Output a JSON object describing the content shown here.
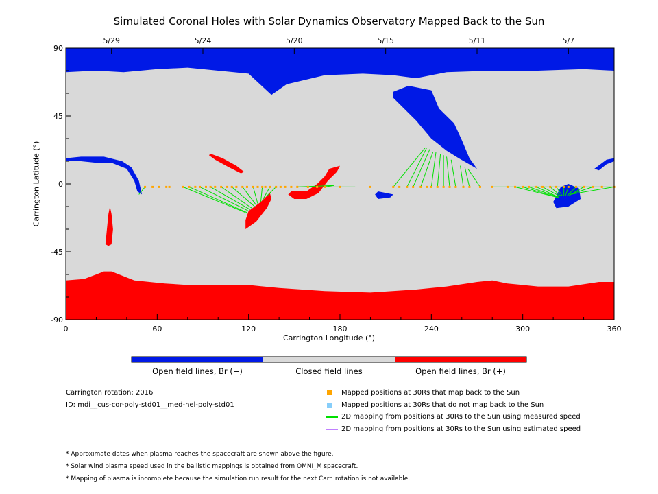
{
  "chart_data": {
    "type": "map",
    "title": "Simulated Coronal Holes with Solar Dynamics Observatory Mapped Back to the Sun",
    "xlabel": "Carrington Longitude (°)",
    "ylabel": "Carrington Latitude (°)",
    "xlim": [
      0,
      360
    ],
    "ylim": [
      -90,
      90
    ],
    "x_ticks": [
      "0",
      "60",
      "120",
      "180",
      "240",
      "300",
      "360"
    ],
    "y_ticks": [
      "90",
      "45",
      "0",
      "-45",
      "-90"
    ],
    "top_date_ticks": [
      {
        "label": "5/29",
        "lon": 30
      },
      {
        "label": "5/24",
        "lon": 90
      },
      {
        "label": "5/20",
        "lon": 150
      },
      {
        "label": "5/15",
        "lon": 210
      },
      {
        "label": "5/11",
        "lon": 270
      },
      {
        "label": "5/7",
        "lon": 330
      }
    ],
    "colors": {
      "open_negative": "#0019e6",
      "closed": "#d9d9d9",
      "open_positive": "#ff0000",
      "mapped_point": "#ffa500",
      "unmapped_point": "#87cefa",
      "measured_line": "#00e000",
      "estimated_line": "#c080ff"
    },
    "regions": {
      "north_polar_hole_boundary": [
        [
          0,
          74
        ],
        [
          20,
          75
        ],
        [
          38,
          74
        ],
        [
          60,
          76
        ],
        [
          80,
          77
        ],
        [
          100,
          75
        ],
        [
          120,
          73
        ],
        [
          135,
          59
        ],
        [
          145,
          66
        ],
        [
          170,
          72
        ],
        [
          195,
          73
        ],
        [
          215,
          72
        ],
        [
          230,
          70
        ],
        [
          250,
          74
        ],
        [
          280,
          75
        ],
        [
          310,
          75
        ],
        [
          340,
          76
        ],
        [
          360,
          75
        ]
      ],
      "south_polar_hole_boundary": [
        [
          0,
          -64
        ],
        [
          12,
          -63
        ],
        [
          20,
          -60
        ],
        [
          25,
          -58
        ],
        [
          30,
          -58
        ],
        [
          35,
          -60
        ],
        [
          45,
          -64
        ],
        [
          65,
          -66
        ],
        [
          80,
          -67
        ],
        [
          100,
          -67
        ],
        [
          120,
          -67
        ],
        [
          140,
          -69
        ],
        [
          170,
          -71
        ],
        [
          200,
          -72
        ],
        [
          230,
          -70
        ],
        [
          250,
          -68
        ],
        [
          270,
          -65
        ],
        [
          280,
          -64
        ],
        [
          290,
          -66
        ],
        [
          310,
          -68
        ],
        [
          330,
          -68
        ],
        [
          350,
          -65
        ],
        [
          360,
          -65
        ]
      ],
      "negative_extension": [
        [
          215,
          61
        ],
        [
          225,
          65
        ],
        [
          240,
          62
        ],
        [
          245,
          50
        ],
        [
          255,
          40
        ],
        [
          260,
          29
        ],
        [
          265,
          17
        ],
        [
          270,
          10
        ],
        [
          258,
          17
        ],
        [
          250,
          22
        ],
        [
          240,
          30
        ],
        [
          230,
          42
        ],
        [
          222,
          50
        ],
        [
          215,
          57
        ]
      ],
      "negative_lowlat_left": [
        [
          0,
          17
        ],
        [
          10,
          18
        ],
        [
          25,
          18
        ],
        [
          37,
          15
        ],
        [
          43,
          11
        ],
        [
          48,
          2
        ],
        [
          50,
          -7
        ],
        [
          47,
          -5
        ],
        [
          45,
          2
        ],
        [
          40,
          10
        ],
        [
          30,
          14
        ],
        [
          20,
          14
        ],
        [
          10,
          15
        ],
        [
          0,
          15
        ]
      ],
      "negative_small_a": [
        [
          205,
          -5
        ],
        [
          215,
          -7
        ],
        [
          213,
          -9
        ],
        [
          205,
          -10
        ],
        [
          203,
          -7
        ]
      ],
      "negative_small_b": [
        [
          320,
          -12
        ],
        [
          325,
          -2
        ],
        [
          330,
          0
        ],
        [
          337,
          -3
        ],
        [
          338,
          -10
        ],
        [
          330,
          -15
        ],
        [
          322,
          -16
        ]
      ],
      "negative_small_c": [
        [
          347,
          10
        ],
        [
          355,
          16
        ],
        [
          360,
          17
        ],
        [
          360,
          15
        ],
        [
          355,
          13
        ],
        [
          350,
          9
        ]
      ],
      "positive_center": [
        [
          118,
          -30
        ],
        [
          125,
          -25
        ],
        [
          132,
          -16
        ],
        [
          135,
          -10
        ],
        [
          134,
          -6
        ],
        [
          128,
          -12
        ],
        [
          120,
          -18
        ],
        [
          118,
          -24
        ]
      ],
      "positive_right": [
        [
          148,
          -5
        ],
        [
          158,
          -5
        ],
        [
          165,
          0
        ],
        [
          170,
          5
        ],
        [
          173,
          10
        ],
        [
          180,
          12
        ],
        [
          178,
          8
        ],
        [
          172,
          2
        ],
        [
          166,
          -6
        ],
        [
          158,
          -10
        ],
        [
          150,
          -10
        ],
        [
          146,
          -7
        ]
      ],
      "positive_far_left": [
        [
          26,
          -40
        ],
        [
          27,
          -30
        ],
        [
          28,
          -20
        ],
        [
          29,
          -15
        ],
        [
          30,
          -20
        ],
        [
          31,
          -30
        ],
        [
          30,
          -40
        ],
        [
          28,
          -41
        ]
      ],
      "positive_small_upper": [
        [
          95,
          20
        ],
        [
          103,
          17
        ],
        [
          112,
          12
        ],
        [
          117,
          8
        ],
        [
          115,
          7
        ],
        [
          107,
          11
        ],
        [
          98,
          16
        ],
        [
          94,
          19
        ]
      ]
    },
    "mapped_points": {
      "latitude": -2,
      "longitudes": [
        52,
        57,
        61,
        66,
        68,
        77,
        81,
        85,
        88,
        92,
        95,
        98,
        102,
        106,
        109,
        112,
        116,
        119,
        123,
        126,
        129,
        131,
        134,
        138,
        141,
        144,
        148,
        152,
        159,
        165,
        170,
        180,
        200,
        215,
        219,
        224,
        228,
        233,
        237,
        240,
        244,
        248,
        252,
        256,
        261,
        265,
        272,
        280,
        290,
        295,
        300,
        304,
        309,
        313,
        318,
        322,
        327,
        330,
        335,
        340,
        346,
        352,
        360
      ]
    },
    "measured_lines": [
      {
        "points": [
          [
            77,
            -2
          ],
          [
            118,
            -19
          ]
        ]
      },
      {
        "points": [
          [
            81,
            -2
          ],
          [
            119,
            -19
          ]
        ]
      },
      {
        "points": [
          [
            88,
            -2
          ],
          [
            120,
            -18
          ]
        ]
      },
      {
        "points": [
          [
            95,
            -2
          ],
          [
            121,
            -17
          ]
        ]
      },
      {
        "points": [
          [
            102,
            -2
          ],
          [
            122,
            -16
          ]
        ]
      },
      {
        "points": [
          [
            109,
            -2
          ],
          [
            124,
            -15
          ]
        ]
      },
      {
        "points": [
          [
            116,
            -2
          ],
          [
            125,
            -14
          ]
        ]
      },
      {
        "points": [
          [
            123,
            -2
          ],
          [
            126,
            -13
          ]
        ]
      },
      {
        "points": [
          [
            129,
            -2
          ],
          [
            128,
            -12
          ]
        ]
      },
      {
        "points": [
          [
            134,
            -2
          ],
          [
            129,
            -11
          ]
        ]
      },
      {
        "points": [
          [
            138,
            -2
          ],
          [
            132,
            -8
          ]
        ]
      },
      {
        "points": [
          [
            152,
            -2
          ],
          [
            176,
            -1
          ]
        ]
      },
      {
        "points": [
          [
            170,
            -2
          ],
          [
            176,
            -1
          ]
        ]
      },
      {
        "points": [
          [
            215,
            -2
          ],
          [
            236,
            24
          ]
        ]
      },
      {
        "points": [
          [
            224,
            -2
          ],
          [
            237,
            24
          ]
        ]
      },
      {
        "points": [
          [
            228,
            -2
          ],
          [
            239,
            23
          ]
        ]
      },
      {
        "points": [
          [
            233,
            -2
          ],
          [
            241,
            21
          ]
        ]
      },
      {
        "points": [
          [
            240,
            -2
          ],
          [
            243,
            21
          ]
        ]
      },
      {
        "points": [
          [
            244,
            -2
          ],
          [
            246,
            20
          ]
        ]
      },
      {
        "points": [
          [
            248,
            -2
          ],
          [
            248,
            19
          ]
        ]
      },
      {
        "points": [
          [
            252,
            -2
          ],
          [
            250,
            18
          ]
        ]
      },
      {
        "points": [
          [
            256,
            -2
          ],
          [
            253,
            16
          ]
        ]
      },
      {
        "points": [
          [
            261,
            -2
          ],
          [
            259,
            12
          ]
        ]
      },
      {
        "points": [
          [
            265,
            -2
          ],
          [
            262,
            11
          ]
        ]
      },
      {
        "points": [
          [
            272,
            -2
          ],
          [
            264,
            10
          ]
        ]
      },
      {
        "points": [
          [
            295,
            -2
          ],
          [
            323,
            -9
          ]
        ]
      },
      {
        "points": [
          [
            300,
            -2
          ],
          [
            323,
            -9
          ]
        ]
      },
      {
        "points": [
          [
            304,
            -2
          ],
          [
            324,
            -9
          ]
        ]
      },
      {
        "points": [
          [
            309,
            -2
          ],
          [
            324,
            -9
          ]
        ]
      },
      {
        "points": [
          [
            313,
            -2
          ],
          [
            324,
            -8
          ]
        ]
      },
      {
        "points": [
          [
            318,
            -2
          ],
          [
            325,
            -8
          ]
        ]
      },
      {
        "points": [
          [
            322,
            -2
          ],
          [
            326,
            -8
          ]
        ]
      },
      {
        "points": [
          [
            327,
            -2
          ],
          [
            327,
            -8
          ]
        ]
      },
      {
        "points": [
          [
            330,
            -2
          ],
          [
            328,
            -8
          ]
        ]
      },
      {
        "points": [
          [
            335,
            -2
          ],
          [
            329,
            -8
          ]
        ]
      },
      {
        "points": [
          [
            340,
            -2
          ],
          [
            330,
            -8
          ]
        ]
      },
      {
        "points": [
          [
            346,
            -2
          ],
          [
            331,
            -7
          ]
        ]
      },
      {
        "points": [
          [
            360,
            -2
          ],
          [
            331,
            -7
          ]
        ]
      }
    ],
    "left_hook_line": [
      [
        48,
        -7
      ],
      [
        52,
        -2
      ]
    ],
    "colorbar_labels": [
      "Open field lines, Br (−)",
      "Closed field lines",
      "Open field lines, Br (+)"
    ]
  },
  "info": {
    "carrington_rotation": "Carrington rotation: 2016",
    "id": "ID: mdi__cus-cor-poly-std01__med-hel-poly-std01"
  },
  "legend": [
    {
      "symbol": "square",
      "color": "#ffa500",
      "label": "Mapped positions at 30Rs that map back to the Sun"
    },
    {
      "symbol": "square",
      "color": "#87cefa",
      "label": "Mapped positions at 30Rs that do not map back to the Sun"
    },
    {
      "symbol": "line",
      "color": "#00e000",
      "label": "2D mapping from positions at 30Rs to the Sun using measured speed"
    },
    {
      "symbol": "line",
      "color": "#c080ff",
      "label": "2D mapping from positions at 30Rs to the Sun using estimated speed"
    }
  ],
  "notes": [
    "* Approximate dates when plasma reaches the spacecraft are shown above the figure.",
    "* Solar wind plasma speed used in the ballistic mappings is obtained from OMNI_M spacecraft.",
    "* Mapping of plasma is incomplete because the simulation run result for the next Carr. rotation is not available."
  ]
}
